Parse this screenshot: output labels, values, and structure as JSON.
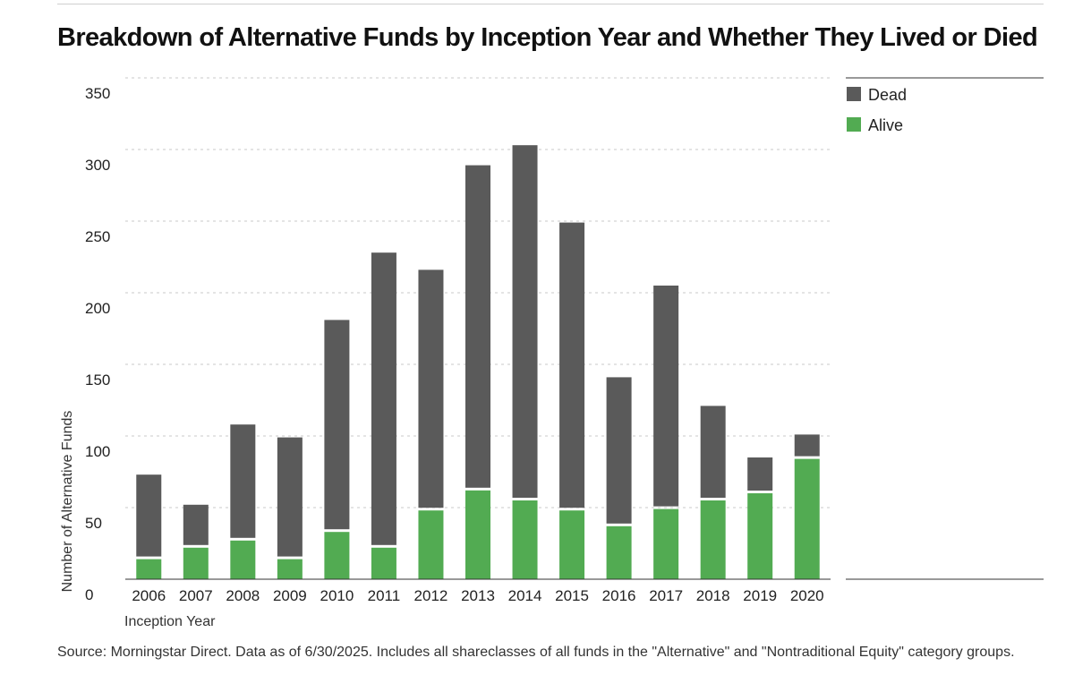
{
  "chart_data": {
    "type": "bar",
    "stacked": true,
    "title": "Breakdown of Alternative Funds by Inception Year and Whether They Lived or Died",
    "xlabel": "Inception Year",
    "ylabel": "Number of Alternative Funds",
    "ylim": [
      0,
      350
    ],
    "yticks": [
      0,
      50,
      100,
      150,
      200,
      250,
      300,
      350
    ],
    "grid": true,
    "legend": "top-right",
    "categories": [
      "2006",
      "2007",
      "2008",
      "2009",
      "2010",
      "2011",
      "2012",
      "2013",
      "2014",
      "2015",
      "2016",
      "2017",
      "2018",
      "2019",
      "2020"
    ],
    "series": [
      {
        "name": "Alive",
        "color": "#52ab52",
        "values": [
          14,
          22,
          27,
          14,
          33,
          22,
          48,
          62,
          55,
          48,
          37,
          49,
          55,
          60,
          84
        ]
      },
      {
        "name": "Dead",
        "color": "#5a5a5a",
        "values": [
          59,
          30,
          81,
          85,
          148,
          206,
          168,
          227,
          248,
          201,
          104,
          156,
          66,
          25,
          17
        ]
      }
    ],
    "legend_order": [
      "Dead",
      "Alive"
    ]
  },
  "source_note": "Source: Morningstar Direct. Data as of 6/30/2025. Includes all shareclasses of all funds in the \"Alternative\" and \"Nontraditional Equity\" category groups."
}
